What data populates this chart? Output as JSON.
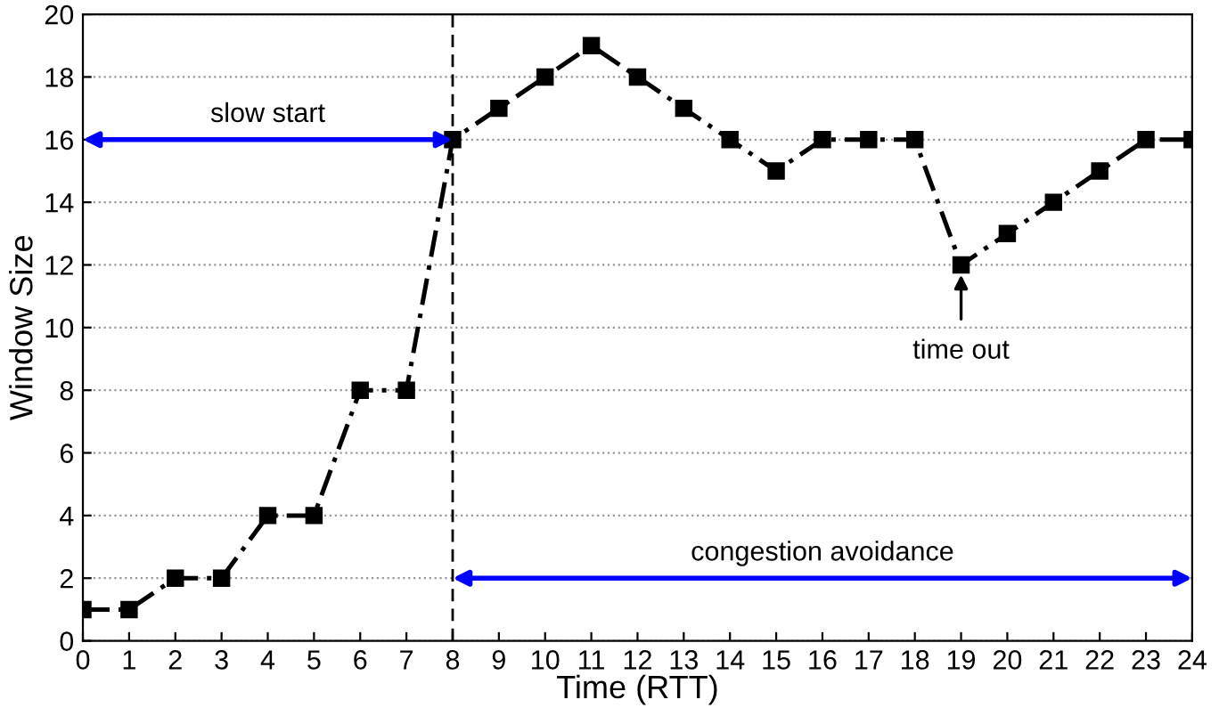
{
  "chart_data": {
    "type": "line",
    "xlabel": "Time (RTT)",
    "ylabel": "Window Size",
    "x": [
      0,
      1,
      2,
      3,
      4,
      5,
      6,
      7,
      8,
      9,
      10,
      11,
      12,
      13,
      14,
      15,
      16,
      17,
      18,
      19,
      20,
      21,
      22,
      23,
      24
    ],
    "series": [
      {
        "color": "#000000",
        "values": [
          1,
          1,
          2,
          2,
          4,
          4,
          8,
          8,
          16,
          17,
          18,
          19,
          18,
          17,
          16,
          15,
          16,
          16,
          16,
          12,
          13,
          14,
          15,
          16,
          16
        ]
      }
    ],
    "xlim": [
      0,
      24
    ],
    "xticks": [
      0,
      1,
      2,
      3,
      4,
      5,
      6,
      7,
      8,
      9,
      10,
      11,
      12,
      13,
      14,
      15,
      16,
      17,
      18,
      19,
      20,
      21,
      22,
      23,
      24
    ],
    "ylim": [
      0,
      20
    ],
    "yticks": [
      0,
      2,
      4,
      6,
      8,
      10,
      12,
      14,
      16,
      18,
      20
    ],
    "grid": "y",
    "marker": "square",
    "line_style": "dashed",
    "ref_lines": [
      {
        "axis": "x",
        "value": 8,
        "color": "#000000",
        "line_style": "dashed"
      }
    ],
    "annotations": [
      "slow start",
      "congestion avoidance",
      {
        "text": "time out",
        "x": 19,
        "y": 12
      }
    ]
  }
}
